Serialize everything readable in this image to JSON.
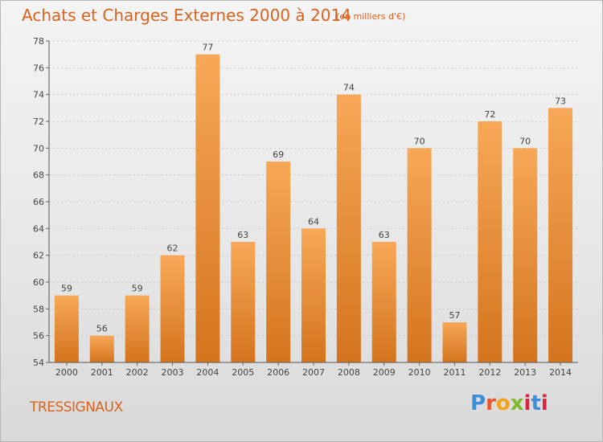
{
  "title": "Achats et Charges Externes 2000 à 2014",
  "subtitle": "(en milliers d'€)",
  "commune": "TRESSIGNAUX",
  "logo_text": "Proxiti",
  "colors": {
    "bar_light": "#f6a553",
    "bar_dark": "#d87a22",
    "title": "#d9621e",
    "axis": "#555555"
  },
  "chart_data": {
    "type": "bar",
    "categories": [
      "2000",
      "2001",
      "2002",
      "2003",
      "2004",
      "2005",
      "2006",
      "2007",
      "2008",
      "2009",
      "2010",
      "2011",
      "2012",
      "2013",
      "2014"
    ],
    "values": [
      59,
      56,
      59,
      62,
      77,
      63,
      69,
      64,
      74,
      63,
      70,
      57,
      72,
      70,
      73
    ],
    "ylim": [
      54,
      78
    ],
    "yticks": [
      54,
      56,
      58,
      60,
      62,
      64,
      66,
      68,
      70,
      72,
      74,
      76,
      78
    ],
    "grid": true
  }
}
